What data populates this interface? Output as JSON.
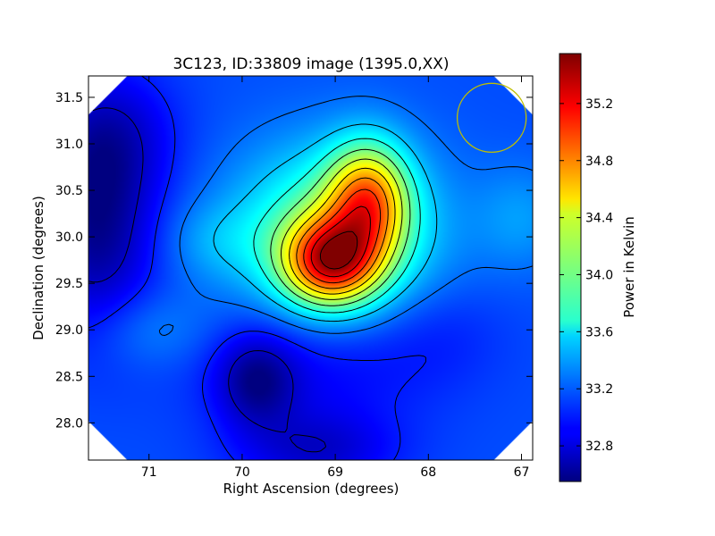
{
  "chart_data": {
    "type": "heatmap",
    "title": "3C123, ID:33809 image (1395.0,XX)",
    "xlabel": "Right Ascension (degrees)",
    "ylabel": "Declination (degrees)",
    "colorbar_label": "Power in Kelvin",
    "colormap": "jet",
    "x_inverted": true,
    "xlim": [
      71.65,
      66.88
    ],
    "ylim": [
      27.6,
      31.73
    ],
    "value_range": [
      32.55,
      35.55
    ],
    "xticks": [
      {
        "value": 71,
        "label": "71"
      },
      {
        "value": 70,
        "label": "70"
      },
      {
        "value": 69,
        "label": "69"
      },
      {
        "value": 68,
        "label": "68"
      },
      {
        "value": 67,
        "label": "67"
      }
    ],
    "yticks": [
      {
        "value": 28.0,
        "label": "28.0"
      },
      {
        "value": 28.5,
        "label": "28.5"
      },
      {
        "value": 29.0,
        "label": "29.0"
      },
      {
        "value": 29.5,
        "label": "29.5"
      },
      {
        "value": 30.0,
        "label": "30.0"
      },
      {
        "value": 30.5,
        "label": "30.5"
      },
      {
        "value": 31.0,
        "label": "31.0"
      },
      {
        "value": 31.5,
        "label": "31.5"
      }
    ],
    "colorbar_ticks": [
      {
        "value": 32.8,
        "label": "32.8"
      },
      {
        "value": 33.2,
        "label": "33.2"
      },
      {
        "value": 33.6,
        "label": "33.6"
      },
      {
        "value": 34.0,
        "label": "34.0"
      },
      {
        "value": 34.4,
        "label": "34.4"
      },
      {
        "value": 34.8,
        "label": "34.8"
      },
      {
        "value": 35.2,
        "label": "35.2"
      }
    ],
    "background_level": 33.15,
    "field_components": [
      {
        "ra": 69.05,
        "dec": 29.73,
        "sigma_ra": 0.35,
        "sigma_dec": 0.32,
        "amplitude": 1.6
      },
      {
        "ra": 68.65,
        "dec": 30.4,
        "sigma_ra": 0.3,
        "sigma_dec": 0.42,
        "amplitude": 1.25
      },
      {
        "ra": 69.0,
        "dec": 30.05,
        "sigma_ra": 0.75,
        "sigma_dec": 0.65,
        "amplitude": 0.85
      },
      {
        "ra": 70.3,
        "dec": 29.95,
        "sigma_ra": 0.4,
        "sigma_dec": 0.3,
        "amplitude": 0.18
      },
      {
        "ra": 71.55,
        "dec": 30.1,
        "sigma_ra": 0.45,
        "sigma_dec": 0.8,
        "amplitude": -0.55
      },
      {
        "ra": 71.4,
        "dec": 31.1,
        "sigma_ra": 0.5,
        "sigma_dec": 0.5,
        "amplitude": -0.3
      },
      {
        "ra": 69.85,
        "dec": 28.45,
        "sigma_ra": 0.3,
        "sigma_dec": 0.35,
        "amplitude": -0.45
      },
      {
        "ra": 69.2,
        "dec": 28.6,
        "sigma_ra": 0.9,
        "sigma_dec": 0.5,
        "amplitude": -0.25
      },
      {
        "ra": 69.2,
        "dec": 27.7,
        "sigma_ra": 0.6,
        "sigma_dec": 0.3,
        "amplitude": -0.35
      },
      {
        "ra": 71.0,
        "dec": 29.0,
        "sigma_ra": 0.45,
        "sigma_dec": 0.3,
        "amplitude": 0.2
      },
      {
        "ra": 67.0,
        "dec": 30.2,
        "sigma_ra": 0.35,
        "sigma_dec": 0.4,
        "amplitude": 0.22
      },
      {
        "ra": 67.9,
        "dec": 29.0,
        "sigma_ra": 0.5,
        "sigma_dec": 0.4,
        "amplitude": -0.12
      }
    ],
    "contour_levels": [
      32.75,
      33.0,
      33.25,
      33.5,
      33.75,
      34.0,
      34.25,
      34.5,
      34.75,
      35.0,
      35.25,
      35.5
    ],
    "beam_circle": {
      "ra": 67.32,
      "dec": 31.28,
      "radius_deg": 0.37,
      "color": "#bfbf00"
    },
    "contour_color": "#000000"
  }
}
